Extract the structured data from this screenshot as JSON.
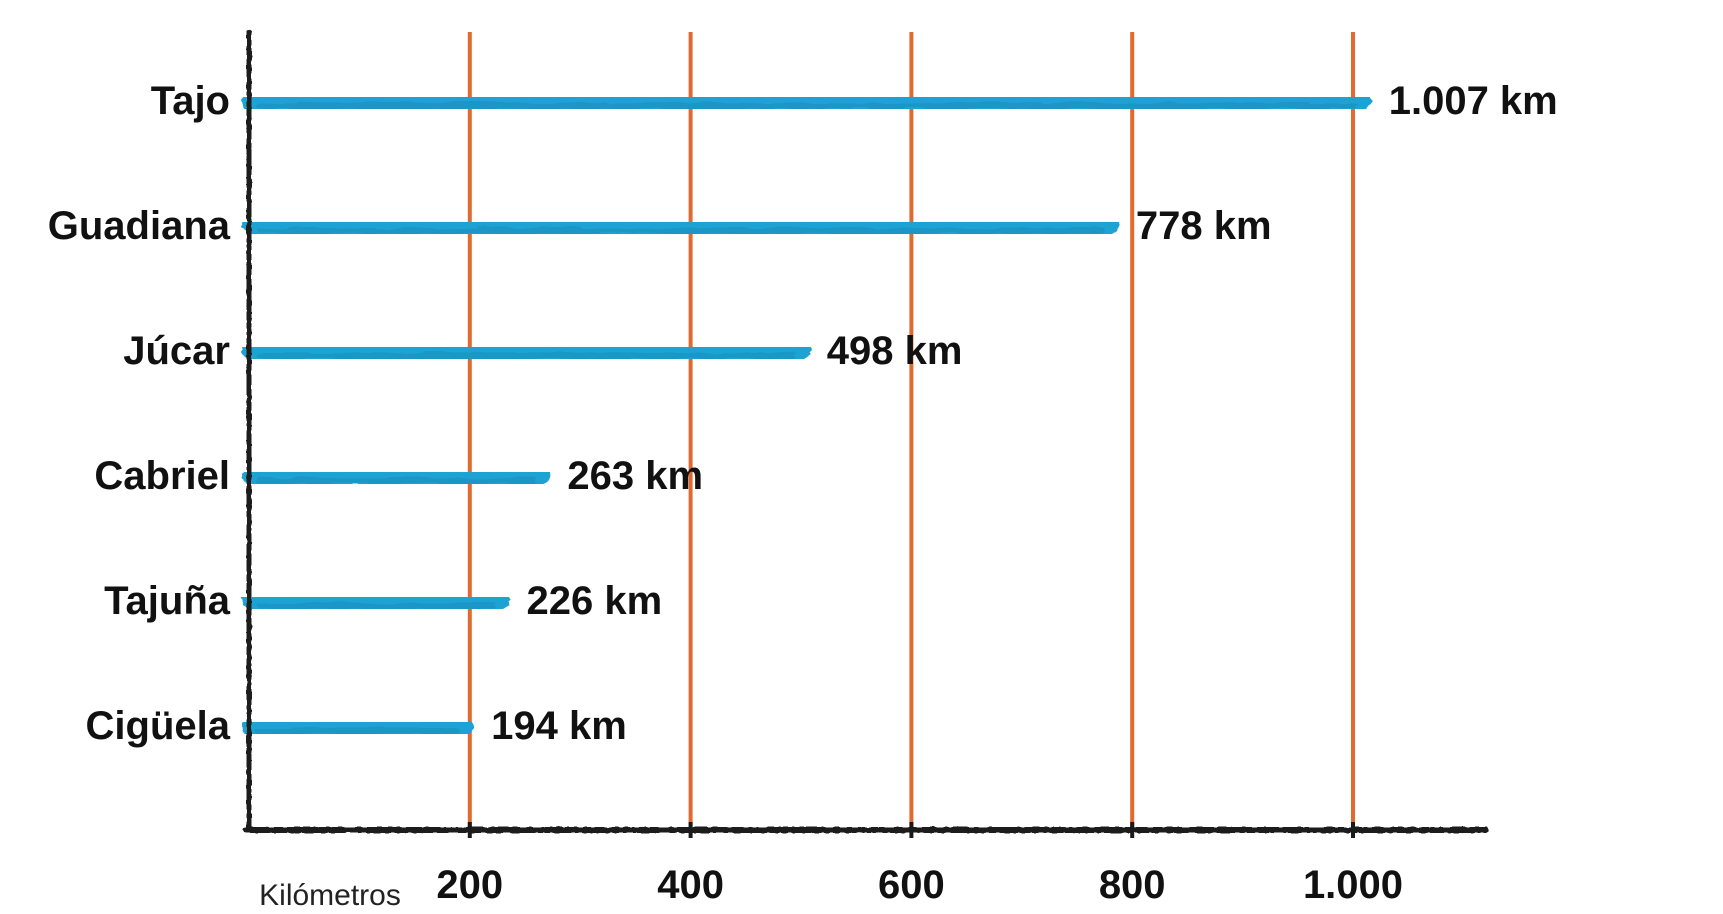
{
  "chart_data": {
    "type": "bar",
    "orientation": "horizontal",
    "categories": [
      "Tajo",
      "Guadiana",
      "Júcar",
      "Cabriel",
      "Tajuña",
      "Cigüela"
    ],
    "values": [
      1007,
      778,
      498,
      263,
      226,
      194
    ],
    "value_labels": [
      "1.007 km",
      "778 km",
      "498 km",
      "263 km",
      "226 km",
      "194 km"
    ],
    "xlabel": "Kilómetros",
    "xticks": [
      200,
      400,
      600,
      800,
      1000
    ],
    "xtick_labels": [
      "200",
      "400",
      "600",
      "800",
      "1.000"
    ],
    "xlim": [
      0,
      1000
    ],
    "grid": "vertical",
    "legend": "none",
    "colors": {
      "bar": "#1ea2d3",
      "bar_dark": "#1b8fc0",
      "grid": "#e06a2f",
      "axis": "#1a1a1a"
    }
  }
}
